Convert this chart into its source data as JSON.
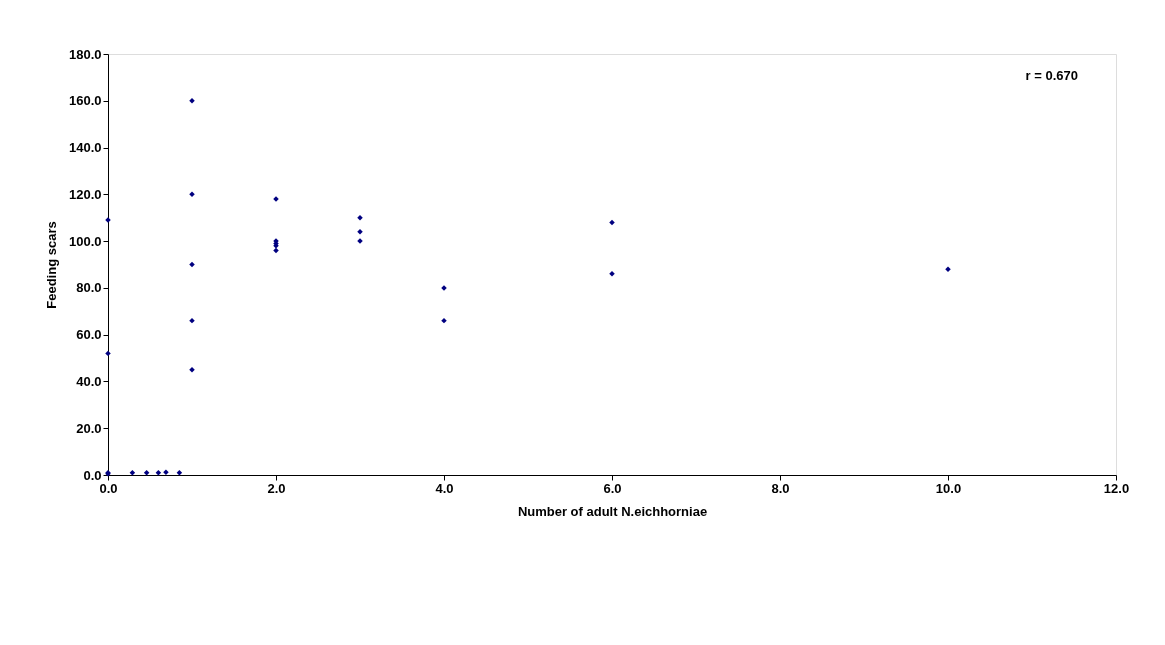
{
  "chart_data": {
    "type": "scatter",
    "xlabel": "Number of adult N.eichhorniae",
    "ylabel": "Feeding scars",
    "annotations": [
      "r = 0.670"
    ],
    "series": [
      {
        "color": "#000080",
        "x": [
          0,
          0,
          0,
          0,
          0.29,
          0.46,
          0.6,
          0.69,
          0.85,
          1,
          1,
          1,
          1,
          1,
          2,
          2,
          2,
          2,
          2,
          3,
          3,
          3,
          4,
          4,
          6,
          6,
          10
        ],
        "values": [
          109,
          52,
          1,
          0.5,
          1,
          1,
          1,
          1.2,
          1,
          160,
          120,
          90,
          66,
          45,
          118,
          100,
          99,
          98,
          96,
          110,
          104,
          100,
          80,
          66,
          108,
          86,
          88
        ]
      }
    ],
    "xlim": [
      0,
      12
    ],
    "ylim": [
      0,
      180
    ],
    "xticks": [
      {
        "value": 0,
        "label": "0.0"
      },
      {
        "value": 2,
        "label": "2.0"
      },
      {
        "value": 4,
        "label": "4.0"
      },
      {
        "value": 6,
        "label": "6.0"
      },
      {
        "value": 8,
        "label": "8.0"
      },
      {
        "value": 10,
        "label": "10.0"
      },
      {
        "value": 12,
        "label": "12.0"
      }
    ],
    "yticks": [
      {
        "value": 0,
        "label": "0.0"
      },
      {
        "value": 20,
        "label": "20.0"
      },
      {
        "value": 40,
        "label": "40.0"
      },
      {
        "value": 60,
        "label": "60.0"
      },
      {
        "value": 80,
        "label": "80.0"
      },
      {
        "value": 100,
        "label": "100.0"
      },
      {
        "value": 120,
        "label": "120.0"
      },
      {
        "value": 140,
        "label": "140.0"
      },
      {
        "value": 160,
        "label": "160.0"
      },
      {
        "value": 180,
        "label": "180.0"
      }
    ],
    "marker": "diamond",
    "grid": false
  }
}
